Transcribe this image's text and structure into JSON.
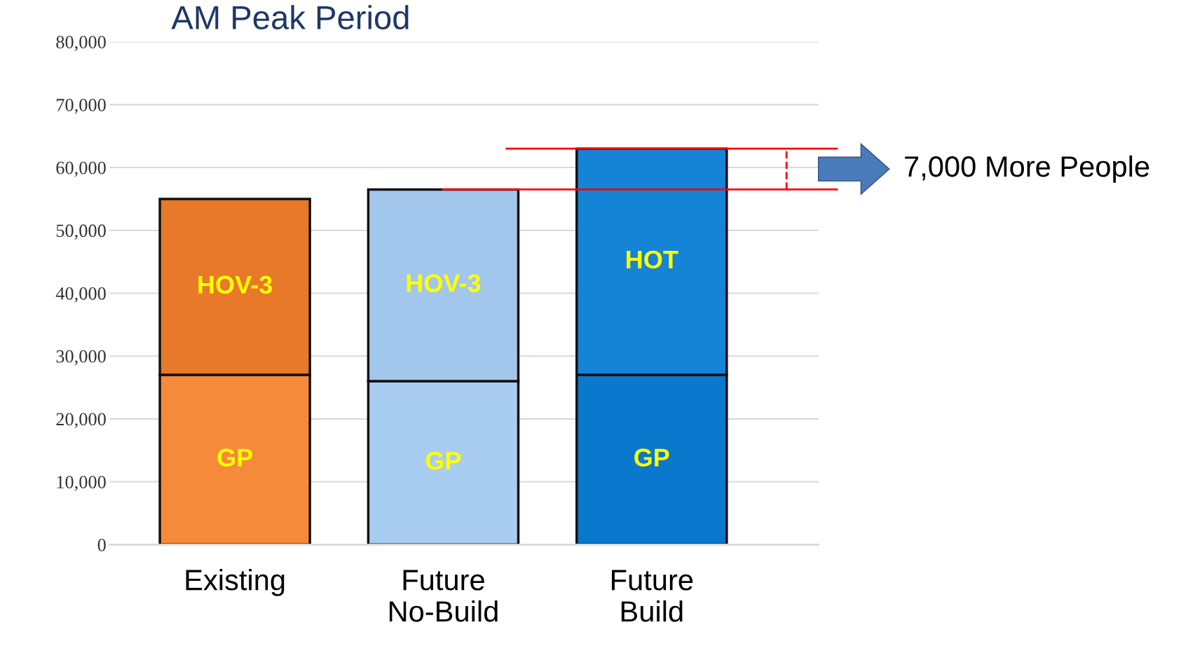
{
  "chart_data": {
    "type": "bar",
    "title": "AM Peak Period",
    "stacked": true,
    "categories": [
      "Existing",
      "Future\nNo-Build",
      "Future\nBuild"
    ],
    "series": [
      {
        "colors": [
          "#f58a3a",
          "#a9cdf0",
          "#0a78cc"
        ],
        "values": [
          27000,
          26000,
          27000
        ],
        "value_labels": [
          "GP",
          "GP",
          "GP"
        ]
      },
      {
        "colors": [
          "#e8782a",
          "#a3c6ec",
          "#1583d6"
        ],
        "values": [
          28000,
          30500,
          36000
        ],
        "value_labels": [
          "HOV-3",
          "HOV-3",
          "HOT"
        ]
      }
    ],
    "ylim": [
      0,
      80000
    ],
    "yticks": [
      {
        "value": 0,
        "label": "0"
      },
      {
        "value": 10000,
        "label": "10,000"
      },
      {
        "value": 20000,
        "label": "20,000"
      },
      {
        "value": 30000,
        "label": "30,000"
      },
      {
        "value": 40000,
        "label": "40,000"
      },
      {
        "value": 50000,
        "label": "50,000"
      },
      {
        "value": 60000,
        "label": "60,000"
      },
      {
        "value": 70000,
        "label": "70,000"
      },
      {
        "value": 80000,
        "label": "80,000"
      }
    ],
    "grid": "y",
    "ref_lines": [
      {
        "axis": "y",
        "value": 63000,
        "color": "#ff0000"
      },
      {
        "axis": "y",
        "value": 56500,
        "color": "#ff0000"
      }
    ],
    "annotations": [
      "7,000 More People"
    ]
  }
}
